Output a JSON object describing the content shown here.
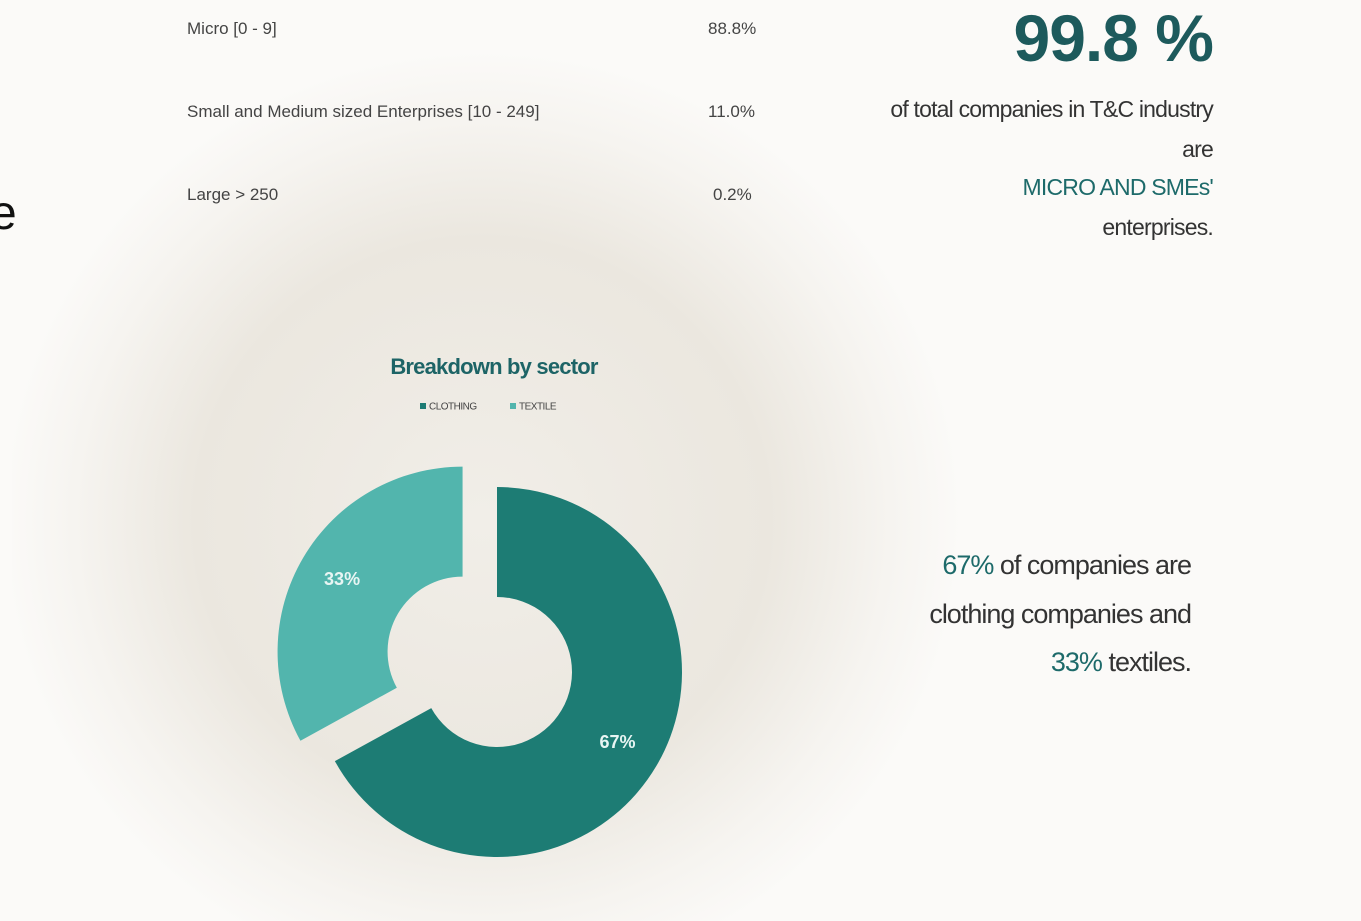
{
  "edge_fragment": "e",
  "table": {
    "rows": [
      [
        "Micro [0 - 9]",
        "88.8%"
      ],
      [
        "Small and Medium sized Enterprises [10 - 249]",
        "11.0%"
      ],
      [
        "Large > 250",
        "0.2%"
      ]
    ]
  },
  "headline": {
    "value": "99.8 %",
    "line_1": "of total companies in T&C industry",
    "line_2": "are",
    "line_3": "MICRO AND SMEs'",
    "line_4": "enterprises."
  },
  "chart_data": {
    "type": "donut",
    "title": "Breakdown by sector",
    "categories": [
      "CLOTHING",
      "TEXTILE"
    ],
    "values": [
      67,
      33
    ],
    "value_labels": [
      "67%",
      "33%"
    ],
    "colors": [
      "#1d7c74",
      "#52b5ad"
    ],
    "legend": "top"
  },
  "summary": {
    "highlight_1": "67%",
    "text_1": "of companies are",
    "text_2": "clothing companies and",
    "highlight_2": "33%",
    "text_3": "textiles."
  }
}
